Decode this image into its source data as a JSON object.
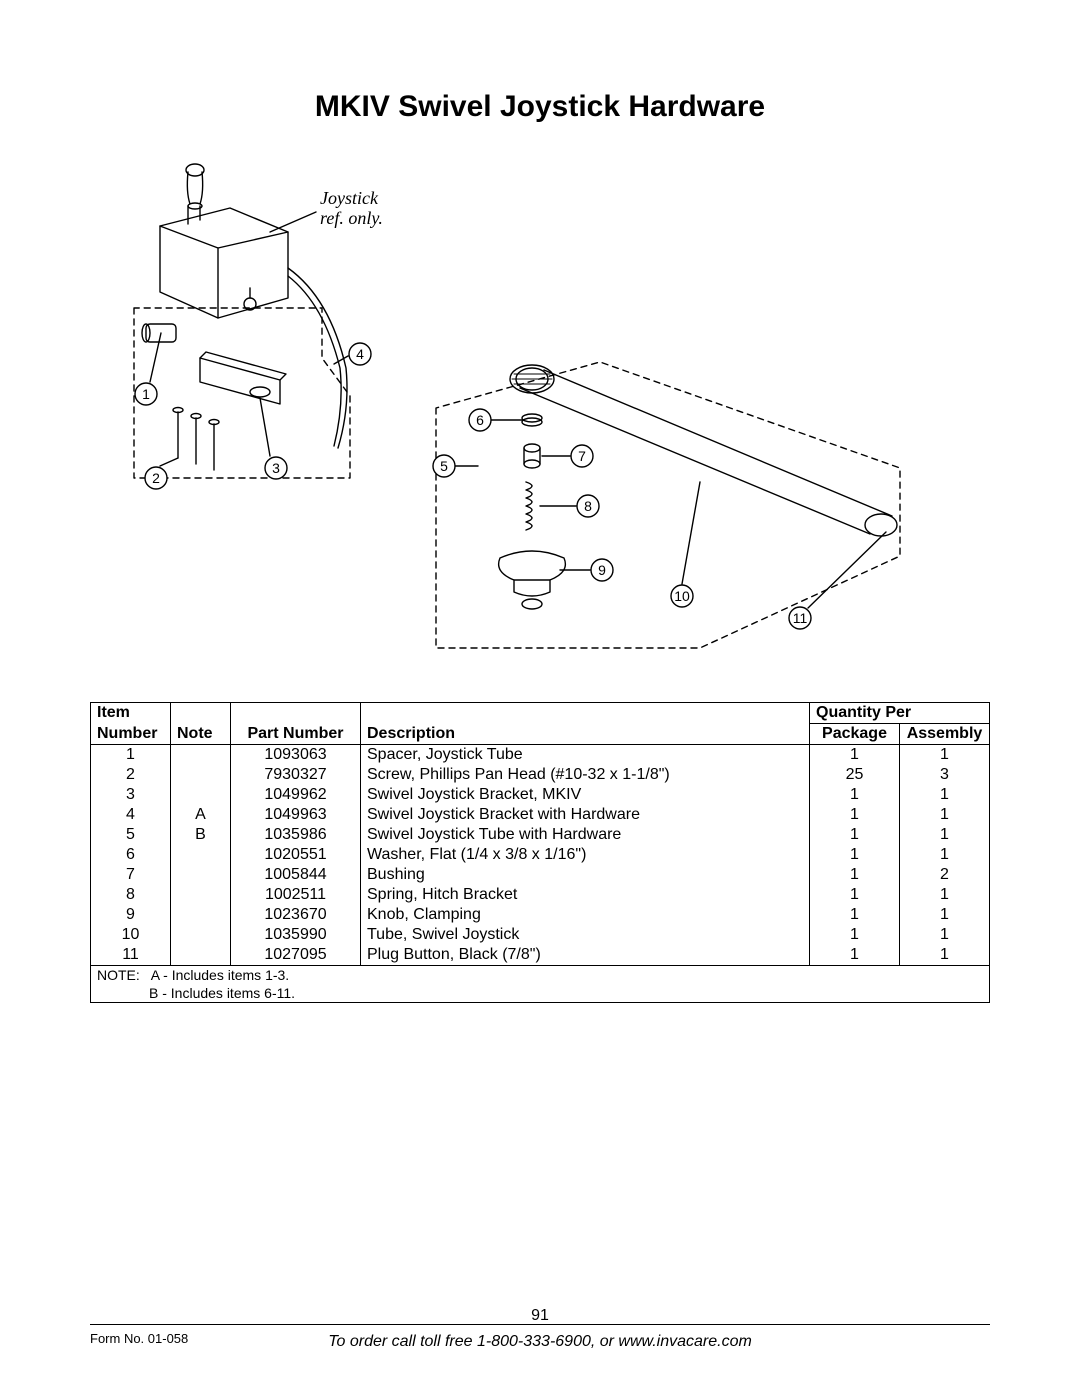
{
  "title": "MKIV Swivel Joystick Hardware",
  "diagram": {
    "ref_label": "Joystick\nref. only.",
    "left_callouts": [
      "1",
      "2",
      "3",
      "4"
    ],
    "right_callouts": [
      "5",
      "6",
      "7",
      "8",
      "9",
      "10",
      "11"
    ],
    "stroke_color": "#000000",
    "stroke_width": 1.4,
    "dash_pattern": "6,5",
    "callout_circle_r": 11,
    "callout_font_size": 14
  },
  "table": {
    "headers": {
      "item_l1": "Item",
      "item_l2": "Number",
      "note": "Note",
      "part": "Part Number",
      "desc": "Description",
      "qty_per": "Quantity Per",
      "package": "Package",
      "assembly": "Assembly"
    },
    "rows": [
      {
        "item": "1",
        "note": "",
        "part": "1093063",
        "desc": "Spacer, Joystick Tube",
        "pkg": "1",
        "asm": "1"
      },
      {
        "item": "2",
        "note": "",
        "part": "7930327",
        "desc": "Screw, Phillips Pan Head (#10-32 x 1-1/8\")",
        "pkg": "25",
        "asm": "3"
      },
      {
        "item": "3",
        "note": "",
        "part": "1049962",
        "desc": "Swivel Joystick Bracket, MKIV",
        "pkg": "1",
        "asm": "1"
      },
      {
        "item": "4",
        "note": "A",
        "part": "1049963",
        "desc": "Swivel Joystick Bracket with Hardware",
        "pkg": "1",
        "asm": "1"
      },
      {
        "item": "5",
        "note": "B",
        "part": "1035986",
        "desc": "Swivel Joystick Tube with Hardware",
        "pkg": "1",
        "asm": "1"
      },
      {
        "item": "6",
        "note": "",
        "part": "1020551",
        "desc": "Washer, Flat (1/4 x 3/8 x 1/16\")",
        "pkg": "1",
        "asm": "1"
      },
      {
        "item": "7",
        "note": "",
        "part": "1005844",
        "desc": "Bushing",
        "pkg": "1",
        "asm": "2"
      },
      {
        "item": "8",
        "note": "",
        "part": "1002511",
        "desc": "Spring, Hitch Bracket",
        "pkg": "1",
        "asm": "1"
      },
      {
        "item": "9",
        "note": "",
        "part": "1023670",
        "desc": "Knob, Clamping",
        "pkg": "1",
        "asm": "1"
      },
      {
        "item": "10",
        "note": "",
        "part": "1035990",
        "desc": "Tube, Swivel Joystick",
        "pkg": "1",
        "asm": "1"
      },
      {
        "item": "11",
        "note": "",
        "part": "1027095",
        "desc": "Plug Button, Black (7/8\")",
        "pkg": "1",
        "asm": "1"
      }
    ],
    "note_prefix": "NOTE:",
    "note_a": "A - Includes items 1-3.",
    "note_b": "B - Includes items 6-11."
  },
  "footer": {
    "page_number": "91",
    "form_no": "Form No. 01-058",
    "order_text": "To order call toll free 1-800-333-6900, or www.invacare.com"
  },
  "colors": {
    "text": "#000000",
    "border": "#000000",
    "background": "#ffffff"
  }
}
